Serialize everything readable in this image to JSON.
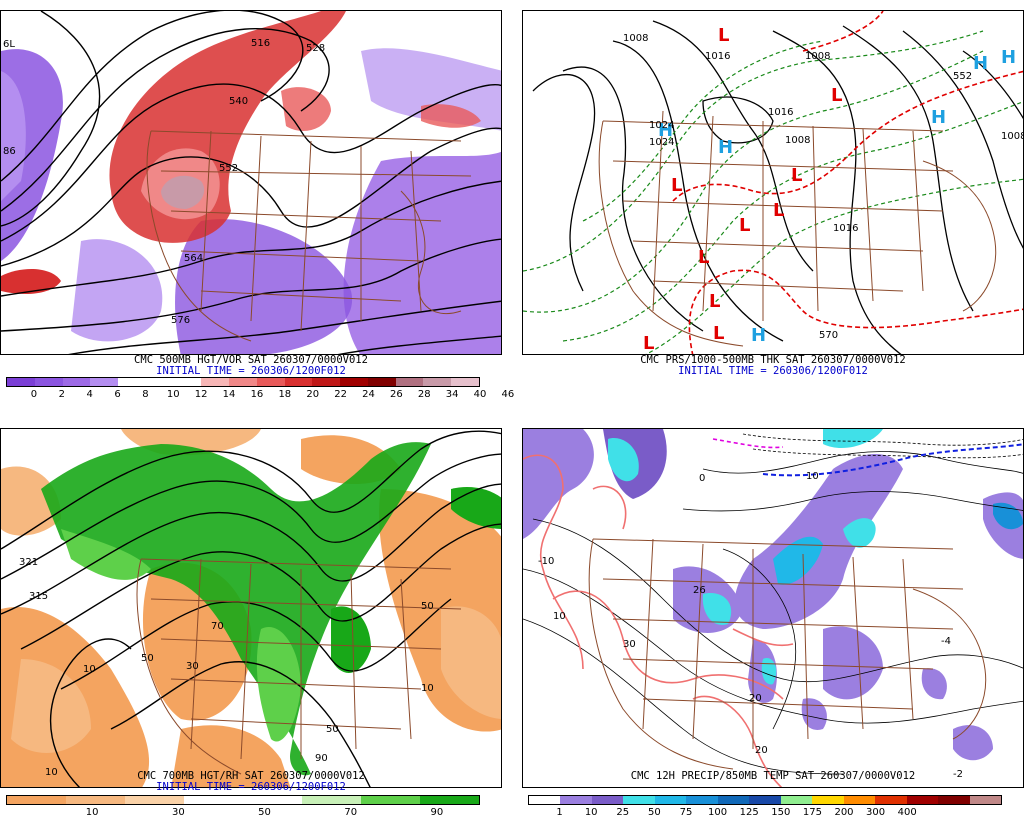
{
  "panels": {
    "tl": {
      "caption1": "CMC 500MB HGT/VOR SAT 260307/0000V012",
      "caption2": "INITIAL TIME = 260306/1200F012",
      "legend_colors": [
        "#7b3fd6",
        "#8b55e0",
        "#9d6ae6",
        "#b48ef0",
        "#ffffff",
        "#ffffff",
        "#ffffff",
        "#f7b6b6",
        "#f08888",
        "#e85a5a",
        "#d83030",
        "#c01818",
        "#a00000",
        "#800000",
        "#b07080",
        "#c89aa8",
        "#e6c0cc"
      ],
      "legend_ticks": [
        "0",
        "2",
        "4",
        "6",
        "8",
        "10",
        "12",
        "14",
        "16",
        "18",
        "20",
        "22",
        "24",
        "26",
        "28",
        "34",
        "40",
        "46"
      ],
      "contour_labels": [
        "516",
        "528",
        "540",
        "552",
        "564",
        "576",
        "6L",
        "86"
      ]
    },
    "tr": {
      "caption1": "CMC PRS/1000-500MB THK SAT 260307/0000V012",
      "caption2": "INITIAL TIME = 260306/1200F012",
      "isobar_labels": [
        "1008",
        "1016",
        "1008",
        "1016",
        "1024",
        "1024",
        "1008",
        "1016",
        "1008",
        "570",
        "552"
      ],
      "highs": [
        "H",
        "H",
        "H",
        "H",
        "H",
        "H"
      ],
      "lows": [
        "L",
        "L",
        "L",
        "L",
        "L",
        "L",
        "L",
        "L",
        "L",
        "L"
      ]
    },
    "bl": {
      "caption1": "CMC 700MB HGT/RH SAT 260307/0000V012",
      "caption2": "INITIAL TIME = 260306/1200F012",
      "legend_colors": [
        "#f4a460",
        "#f6b880",
        "#fad2a8",
        "#ffffff",
        "#ffffff",
        "#c8f0b8",
        "#5ed04a",
        "#18a818"
      ],
      "legend_ticks": [
        "10",
        "30",
        "50",
        "70",
        "90"
      ],
      "contour_labels": [
        "321",
        "315",
        "10",
        "30",
        "50",
        "50",
        "70",
        "90",
        "10",
        "50",
        "10"
      ]
    },
    "br": {
      "caption1": "CMC 12H PRECIP/850MB TEMP SAT 260307/0000V012",
      "legend_colors": [
        "#ffffff",
        "#9b7fe0",
        "#7a5cc8",
        "#40e0e8",
        "#20b8e8",
        "#1890d8",
        "#1068b8",
        "#1848a8",
        "#90ee90",
        "#ffd700",
        "#ff8c00",
        "#e03000",
        "#a00000",
        "#800000",
        "#c08888"
      ],
      "legend_ticks": [
        "1",
        "10",
        "25",
        "50",
        "75",
        "100",
        "125",
        "150",
        "175",
        "200",
        "300",
        "400"
      ],
      "contour_labels": [
        "10",
        "0",
        "-10",
        "20",
        "26",
        "30",
        "-4",
        "-2",
        "10",
        "20"
      ]
    }
  },
  "colors": {
    "border_brown": "#8b4a2b",
    "isobar_black": "#000000",
    "thickness_green": "#1a8a1a",
    "thickness_red": "#e00000",
    "high_blue": "#1ea0e0",
    "low_red": "#e00000",
    "caption_blue": "#0000cc"
  }
}
